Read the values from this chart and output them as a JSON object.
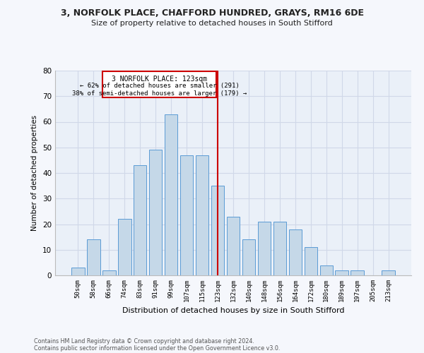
{
  "title": "3, NORFOLK PLACE, CHAFFORD HUNDRED, GRAYS, RM16 6DE",
  "subtitle": "Size of property relative to detached houses in South Stifford",
  "xlabel": "Distribution of detached houses by size in South Stifford",
  "ylabel": "Number of detached properties",
  "categories": [
    "50sqm",
    "58sqm",
    "66sqm",
    "74sqm",
    "83sqm",
    "91sqm",
    "99sqm",
    "107sqm",
    "115sqm",
    "123sqm",
    "132sqm",
    "140sqm",
    "148sqm",
    "156sqm",
    "164sqm",
    "172sqm",
    "180sqm",
    "189sqm",
    "197sqm",
    "205sqm",
    "213sqm"
  ],
  "values": [
    3,
    14,
    2,
    22,
    43,
    49,
    63,
    47,
    47,
    35,
    23,
    14,
    21,
    21,
    18,
    11,
    4,
    2,
    2,
    0,
    2
  ],
  "bar_color": "#c5d8e8",
  "bar_edge_color": "#5b9bd5",
  "grid_color": "#d0d8e8",
  "background_color": "#eaf0f8",
  "fig_background_color": "#f5f7fc",
  "reference_label": "3 NORFOLK PLACE: 123sqm",
  "annotation_line1": "← 62% of detached houses are smaller (291)",
  "annotation_line2": "38% of semi-detached houses are larger (179) →",
  "ref_line_color": "#cc0000",
  "box_edge_color": "#cc0000",
  "ylim": [
    0,
    80
  ],
  "yticks": [
    0,
    10,
    20,
    30,
    40,
    50,
    60,
    70,
    80
  ],
  "footer1": "Contains HM Land Registry data © Crown copyright and database right 2024.",
  "footer2": "Contains public sector information licensed under the Open Government Licence v3.0."
}
